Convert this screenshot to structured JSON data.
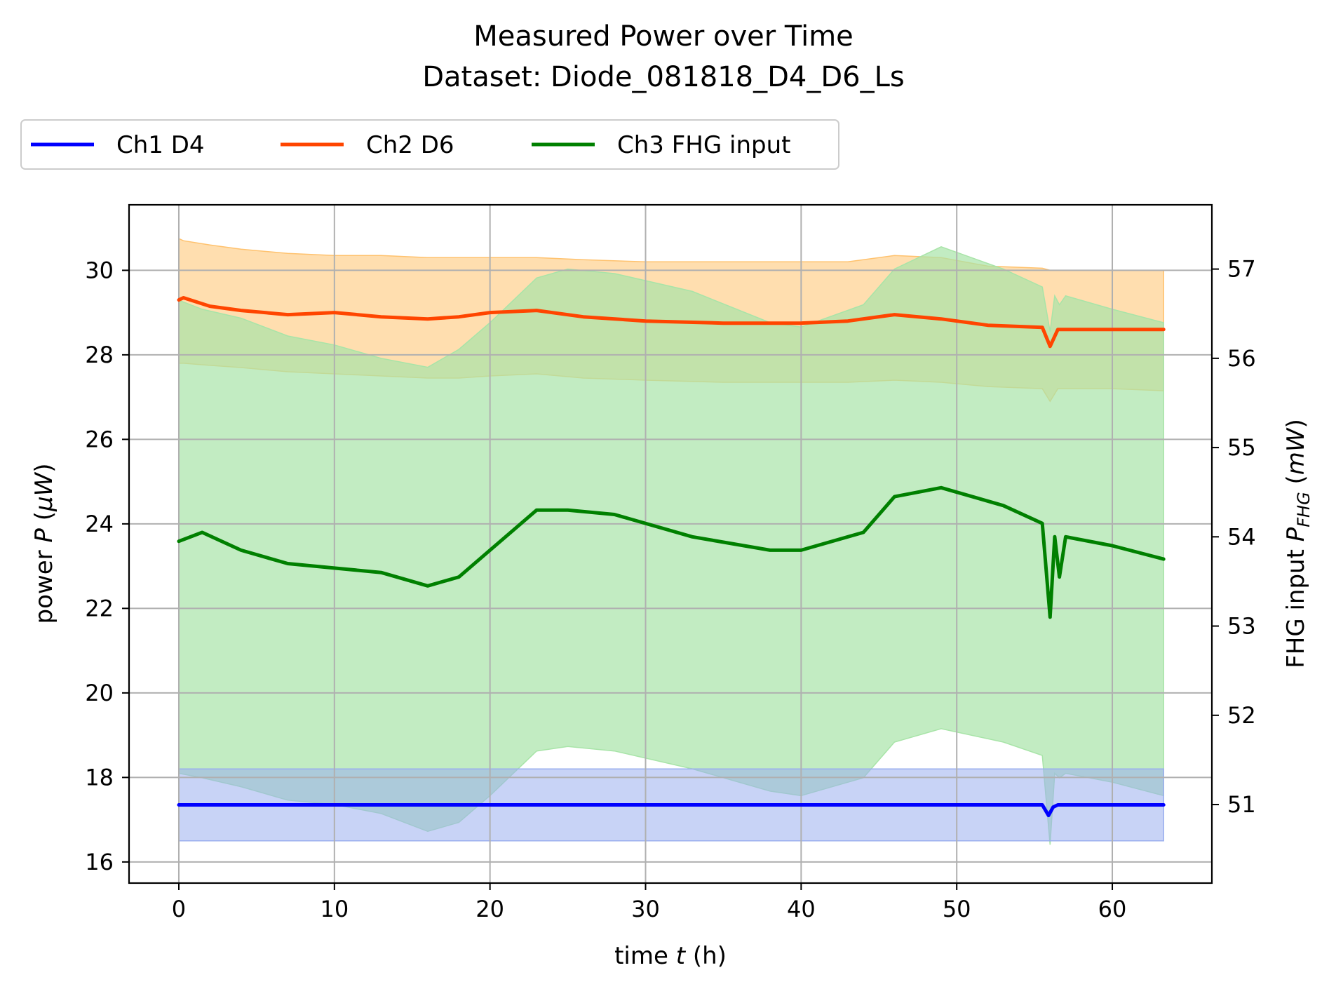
{
  "chart_data": {
    "type": "line",
    "title_line1": "Measured Power over Time",
    "title_line2": "Dataset: Diode_081818_D4_D6_Ls",
    "xlabel": {
      "pre": "time ",
      "var": "t",
      "post": " (h)"
    },
    "ylabel_left": {
      "pre": "power ",
      "var": "P",
      "post_open": " (",
      "unit": "μW",
      "post_close": ")"
    },
    "ylabel_right": {
      "pre": "FHG input ",
      "var": "P",
      "sub": "FHG",
      "post_open": " (",
      "unit": "mW",
      "post_close": ")"
    },
    "xlim": [
      -3.2,
      66.4
    ],
    "ylim_left": [
      15.5,
      31.55
    ],
    "ylim_right": [
      50.12,
      57.72
    ],
    "xticks": [
      0,
      10,
      20,
      30,
      40,
      50,
      60
    ],
    "yticks_left": [
      16,
      18,
      20,
      22,
      24,
      26,
      28,
      30
    ],
    "yticks_right": [
      51,
      52,
      53,
      54,
      55,
      56,
      57
    ],
    "grid": true,
    "legend_position": "top-left above plot",
    "series": [
      {
        "name": "Ch1 D4",
        "axis": "left",
        "color": "#0000ff",
        "band_color": "#9aaeee",
        "x": [
          0,
          10,
          20,
          30,
          40,
          50,
          55.5,
          55.9,
          56.2,
          56.5,
          60,
          63.3
        ],
        "values": [
          17.35,
          17.35,
          17.35,
          17.35,
          17.35,
          17.35,
          17.35,
          17.1,
          17.3,
          17.35,
          17.35,
          17.35
        ],
        "band_upper": [
          18.2,
          18.2,
          18.2,
          18.2,
          18.2,
          18.2,
          18.2,
          18.2,
          18.2,
          18.2,
          18.2,
          18.2
        ],
        "band_lower": [
          16.5,
          16.5,
          16.5,
          16.5,
          16.5,
          16.5,
          16.5,
          16.5,
          16.5,
          16.5,
          16.5,
          16.5
        ]
      },
      {
        "name": "Ch2 D6",
        "axis": "left",
        "color": "#ff4500",
        "band_color": "#ffc26e",
        "x": [
          0,
          0.3,
          2,
          4,
          7,
          10,
          13,
          16,
          18,
          20,
          23,
          26,
          30,
          35,
          40,
          43,
          46,
          49,
          52,
          55.5,
          56,
          56.5,
          60,
          63.3
        ],
        "values": [
          29.3,
          29.35,
          29.15,
          29.05,
          28.95,
          29.0,
          28.9,
          28.85,
          28.9,
          29.0,
          29.05,
          28.9,
          28.8,
          28.75,
          28.75,
          28.8,
          28.95,
          28.85,
          28.7,
          28.65,
          28.2,
          28.6,
          28.6,
          28.6
        ],
        "band_upper": [
          30.75,
          30.7,
          30.6,
          30.5,
          30.4,
          30.35,
          30.35,
          30.3,
          30.3,
          30.3,
          30.3,
          30.25,
          30.2,
          30.2,
          30.2,
          30.2,
          30.35,
          30.3,
          30.1,
          30.05,
          30.0,
          30.0,
          30.0,
          30.0
        ],
        "band_lower": [
          27.8,
          27.8,
          27.75,
          27.7,
          27.6,
          27.55,
          27.5,
          27.45,
          27.45,
          27.5,
          27.55,
          27.45,
          27.4,
          27.35,
          27.35,
          27.35,
          27.4,
          27.35,
          27.25,
          27.2,
          26.9,
          27.2,
          27.2,
          27.15
        ]
      },
      {
        "name": "Ch3 FHG input",
        "axis": "right",
        "color": "#008000",
        "band_color": "#a8e4a8",
        "x": [
          0,
          1.5,
          4,
          7,
          10,
          13,
          16,
          18,
          20,
          23,
          25,
          28,
          33,
          38,
          40,
          44,
          46,
          49,
          53,
          55.5,
          56,
          56.3,
          56.6,
          57,
          60,
          63.3
        ],
        "values": [
          53.95,
          54.05,
          53.85,
          53.7,
          53.65,
          53.6,
          53.45,
          53.55,
          53.85,
          54.3,
          54.3,
          54.25,
          54.0,
          53.85,
          53.85,
          54.05,
          54.45,
          54.55,
          54.35,
          54.15,
          53.1,
          54.0,
          53.55,
          54.0,
          53.9,
          53.75
        ],
        "band_upper": [
          56.65,
          56.55,
          56.45,
          56.25,
          56.15,
          56.0,
          55.9,
          56.1,
          56.4,
          56.9,
          57.0,
          56.95,
          56.75,
          56.4,
          56.35,
          56.6,
          57.0,
          57.25,
          57.0,
          56.8,
          56.3,
          56.7,
          56.6,
          56.7,
          56.55,
          56.4
        ],
        "band_lower": [
          51.35,
          51.3,
          51.2,
          51.05,
          51.0,
          50.9,
          50.7,
          50.8,
          51.1,
          51.6,
          51.65,
          51.6,
          51.4,
          51.15,
          51.1,
          51.3,
          51.7,
          51.85,
          51.7,
          51.55,
          50.55,
          51.35,
          51.3,
          51.35,
          51.25,
          51.1
        ]
      }
    ]
  }
}
